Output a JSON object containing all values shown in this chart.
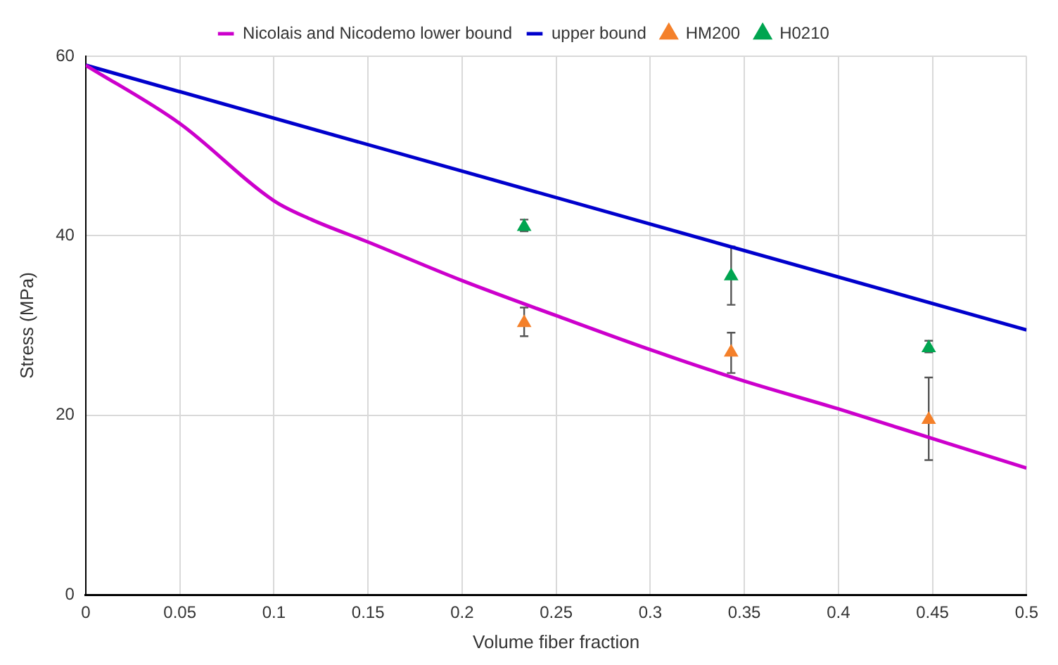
{
  "chart_data": {
    "type": "line",
    "xlabel": "Volume fiber fraction",
    "ylabel": "Stress (MPa)",
    "xlim": [
      0,
      0.5
    ],
    "xticks": [
      0,
      0.05,
      0.1,
      0.15,
      0.2,
      0.25,
      0.3,
      0.35,
      0.4,
      0.45,
      0.5
    ],
    "ylim": [
      0,
      60
    ],
    "yticks": [
      0,
      20,
      40,
      60
    ],
    "grid": true,
    "legend": "top",
    "series": [
      {
        "name": "Nicolais and Nicodemo lower bound",
        "color": "#cc00cc",
        "marker": "none",
        "x": [
          0,
          0.05,
          0.1,
          0.12,
          0.15,
          0.2,
          0.25,
          0.3,
          0.35,
          0.4,
          0.45,
          0.5
        ],
        "values": [
          59,
          52.5,
          43.9,
          41.8,
          39.3,
          35,
          31.1,
          27.3,
          23.8,
          20.7,
          17.4,
          14.1
        ]
      },
      {
        "name": "upper bound",
        "color": "#0000cc",
        "marker": "none",
        "x": [
          0,
          0.5
        ],
        "values": [
          59,
          29.5
        ]
      },
      {
        "name": "HM200",
        "type": "scatter",
        "color": "#f4802a",
        "marker": "triangle",
        "x": [
          0.233,
          0.343,
          0.448
        ],
        "values": [
          30.3,
          27,
          19.5
        ],
        "errors": [
          [
            28.8,
            32
          ],
          [
            24.7,
            29.2
          ],
          [
            15,
            24.2
          ]
        ]
      },
      {
        "name": "H0210",
        "type": "scatter",
        "color": "#00a550",
        "marker": "triangle",
        "x": [
          0.233,
          0.343,
          0.448
        ],
        "values": [
          41,
          35.5,
          27.5
        ],
        "errors": [
          [
            40.5,
            41.8
          ],
          [
            32.3,
            38.8
          ],
          [
            27,
            28.3
          ]
        ]
      }
    ]
  }
}
